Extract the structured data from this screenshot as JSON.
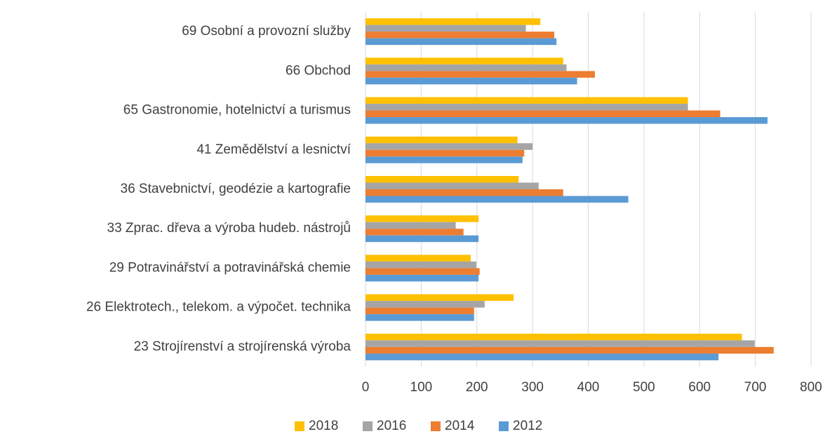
{
  "chart_data": {
    "type": "bar",
    "orientation": "horizontal",
    "categories": [
      "69 Osobní a provozní služby",
      "66 Obchod",
      "65 Gastronomie, hotelnictví a turismus",
      "41 Zemědělství a lesnictví",
      "36 Stavebnictví, geodézie a kartografie",
      "33 Zprac. dřeva a výroba hudeb. nástrojů",
      "29 Potravinářství a potravinářská chemie",
      "26 Elektrotech., telekom. a výpočet. technika",
      "23 Strojírenství a strojírenská výroba"
    ],
    "series": [
      {
        "name": "2018",
        "color": "#ffc000",
        "values": [
          314,
          355,
          579,
          273,
          275,
          203,
          189,
          266,
          676
        ]
      },
      {
        "name": "2016",
        "color": "#a5a5a5",
        "values": [
          288,
          361,
          579,
          300,
          311,
          162,
          199,
          214,
          699
        ]
      },
      {
        "name": "2014",
        "color": "#ed7d31",
        "values": [
          339,
          412,
          637,
          285,
          355,
          176,
          205,
          195,
          733
        ]
      },
      {
        "name": "2012",
        "color": "#5b9bd5",
        "values": [
          343,
          380,
          722,
          282,
          472,
          203,
          203,
          195,
          634
        ]
      }
    ],
    "xlim": [
      0,
      800
    ],
    "xticks": [
      0,
      100,
      200,
      300,
      400,
      500,
      600,
      700,
      800
    ],
    "grid": true,
    "legend": "bottom"
  }
}
